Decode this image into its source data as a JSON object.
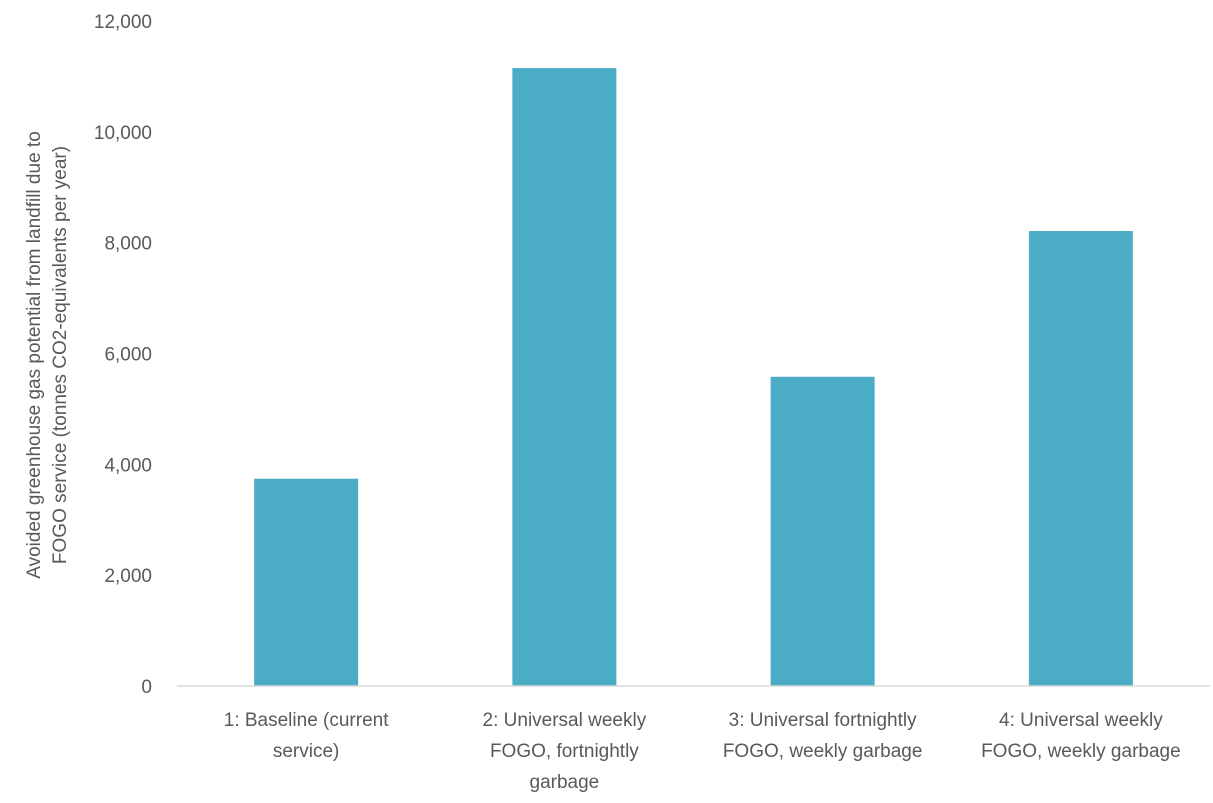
{
  "chart_data": {
    "type": "bar",
    "title": "",
    "xlabel": "",
    "ylabel_lines": [
      "Avoided greenhouse gas potential from landfill  due to",
      "FOGO service (tonnes CO2-equivalents per year)"
    ],
    "categories": [
      [
        "1: Baseline (current",
        "service)"
      ],
      [
        "2: Universal weekly",
        "FOGO, fortnightly",
        "garbage"
      ],
      [
        "3: Universal fortnightly",
        "FOGO, weekly garbage"
      ],
      [
        "4: Universal weekly",
        "FOGO, weekly garbage"
      ]
    ],
    "values": [
      3740,
      11150,
      5580,
      8210
    ],
    "ylim": [
      0,
      12000
    ],
    "y_ticks": [
      "0",
      "2,000",
      "4,000",
      "6,000",
      "8,000",
      "10,000",
      "12,000"
    ],
    "grid": false,
    "legend": "none",
    "bar_color": "#4BACC6",
    "axis_color": "#D9D9D9"
  }
}
